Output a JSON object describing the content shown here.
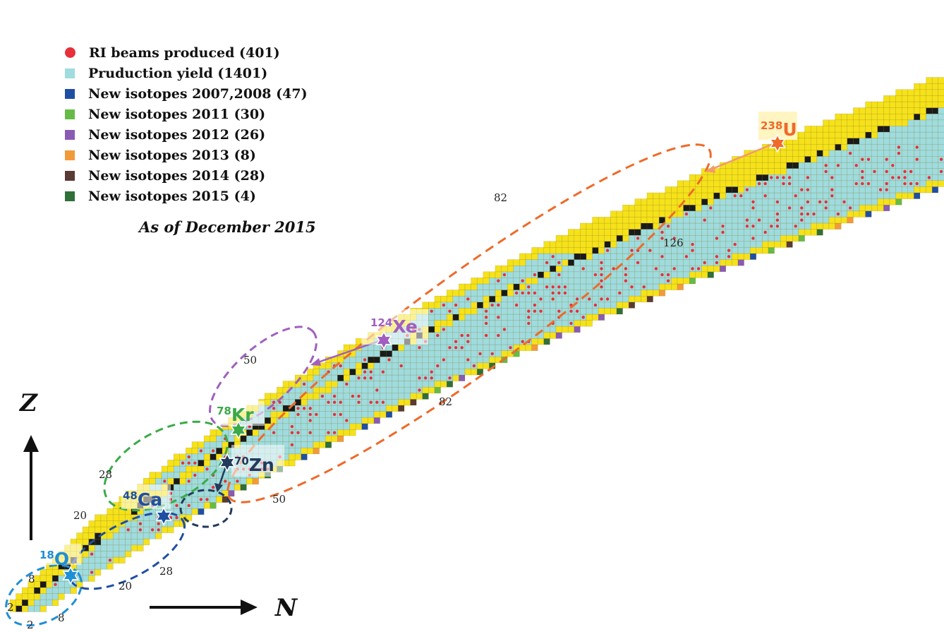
{
  "legend": {
    "items": [
      {
        "label": "RI beams produced (401)",
        "color": "#e8303a",
        "shape": "dot"
      },
      {
        "label": "Pruduction yield (1401)",
        "color": "#9fdcdf",
        "shape": "square"
      },
      {
        "label": "New isotopes 2007,2008 (47)",
        "color": "#1f4fa3",
        "shape": "square"
      },
      {
        "label": "New isotopes 2011 (30)",
        "color": "#66bb47",
        "shape": "square"
      },
      {
        "label": "New isotopes 2012 (26)",
        "color": "#8a5bb4",
        "shape": "square"
      },
      {
        "label": "New isotopes 2013 (8)",
        "color": "#f29a3a",
        "shape": "square"
      },
      {
        "label": "New isotopes 2014 (28)",
        "color": "#5a3a34",
        "shape": "square"
      },
      {
        "label": "New isotopes 2015 (4)",
        "color": "#2f6f38",
        "shape": "square"
      }
    ],
    "note": "As of December 2015"
  },
  "axes": {
    "z_label": "Z",
    "n_label": "N"
  },
  "magic_numbers": {
    "z": [
      "2",
      "8",
      "20",
      "28",
      "50",
      "82"
    ],
    "n": [
      "2",
      "8",
      "20",
      "28",
      "50",
      "82",
      "126"
    ]
  },
  "beams": [
    {
      "mass": "18",
      "symbol": "O",
      "color": "#1f8fd6"
    },
    {
      "mass": "48",
      "symbol": "Ca",
      "color": "#1f4fa3"
    },
    {
      "mass": "70",
      "symbol": "Zn",
      "color": "#223a5c"
    },
    {
      "mass": "78",
      "symbol": "Kr",
      "color": "#3aaa48"
    },
    {
      "mass": "124",
      "symbol": "Xe",
      "color": "#a05fc0"
    },
    {
      "mass": "238",
      "symbol": "U",
      "color": "#ee6a2a"
    }
  ],
  "colors": {
    "yellow": "#f6e21a",
    "stable": "#1a1a1a",
    "cyan": "#9fdcdf",
    "grid_line": "#c9a800",
    "highlight_box": "#fff5c2"
  }
}
